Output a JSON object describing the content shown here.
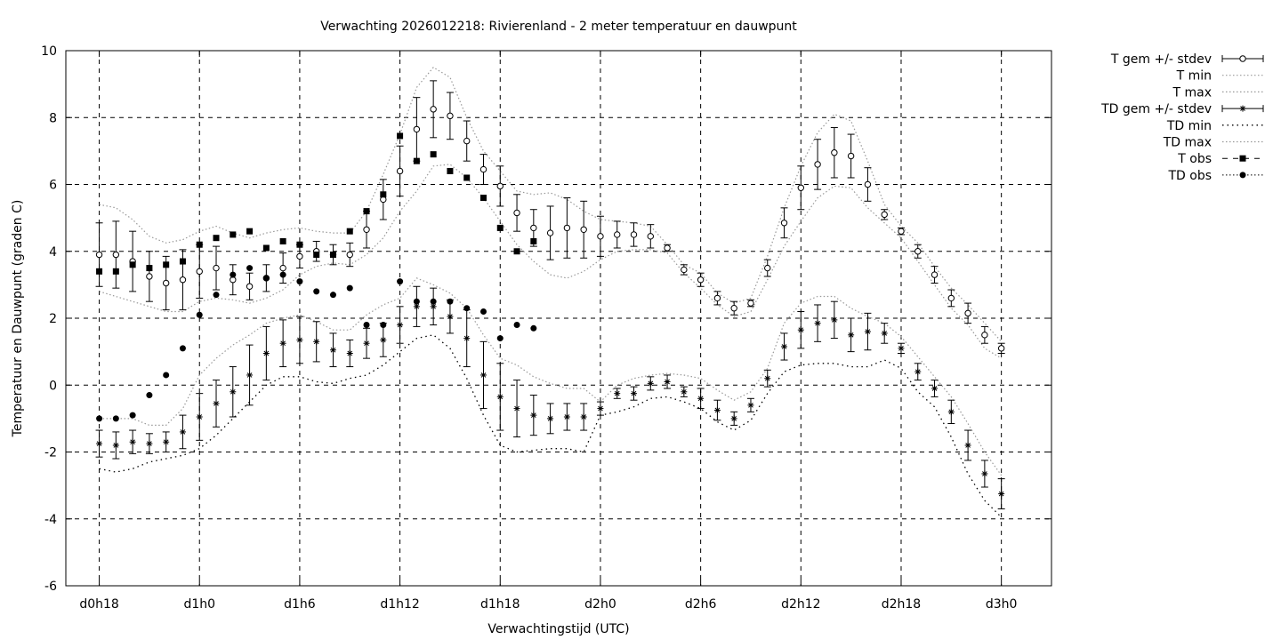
{
  "chart_data": {
    "type": "scatter",
    "title": "Verwachting 2026012218: Rivierenland - 2 meter temperatuur en dauwpunt",
    "xlabel": "Verwachtingstijd (UTC)",
    "ylabel": "Temperatuur en Dauwpunt (graden C)",
    "x_unit": "hours since d0h0",
    "xlim": [
      16,
      75
    ],
    "ylim": [
      -6,
      10
    ],
    "x_ticks": [
      {
        "x": 18,
        "label": "d0h18"
      },
      {
        "x": 24,
        "label": "d1h0"
      },
      {
        "x": 30,
        "label": "d1h6"
      },
      {
        "x": 36,
        "label": "d1h12"
      },
      {
        "x": 42,
        "label": "d1h18"
      },
      {
        "x": 48,
        "label": "d2h0"
      },
      {
        "x": 54,
        "label": "d2h6"
      },
      {
        "x": 60,
        "label": "d2h12"
      },
      {
        "x": 66,
        "label": "d2h18"
      },
      {
        "x": 72,
        "label": "d3h0"
      }
    ],
    "y_ticks": [
      10,
      8,
      6,
      4,
      2,
      0,
      -2,
      -4,
      -6
    ],
    "grid": true,
    "legend_position": "outside-right",
    "series": [
      {
        "name": "T gem +/- stdev",
        "x": [
          18,
          19,
          20,
          21,
          22,
          23,
          24,
          25,
          26,
          27,
          28,
          29,
          30,
          31,
          32,
          33,
          34,
          35,
          36,
          37,
          38,
          39,
          40,
          41,
          42,
          43,
          44,
          45,
          46,
          47,
          48,
          49,
          50,
          51,
          52,
          53,
          54,
          55,
          56,
          57,
          58,
          59,
          60,
          61,
          62,
          63,
          64,
          65,
          66,
          67,
          68,
          69,
          70,
          71,
          72
        ],
        "y": [
          3.9,
          3.9,
          3.7,
          3.25,
          3.05,
          3.15,
          3.4,
          3.5,
          3.15,
          2.95,
          3.2,
          3.5,
          3.85,
          4.0,
          3.9,
          3.9,
          4.65,
          5.55,
          6.4,
          7.65,
          8.25,
          8.05,
          7.3,
          6.45,
          5.95,
          5.15,
          4.7,
          4.55,
          4.7,
          4.65,
          4.45,
          4.5,
          4.5,
          4.45,
          4.1,
          3.45,
          3.15,
          2.6,
          2.3,
          2.45,
          3.5,
          4.85,
          5.9,
          6.6,
          6.95,
          6.85,
          6.0,
          5.1,
          4.6,
          4.0,
          3.3,
          2.6,
          2.15,
          1.5,
          1.1
        ],
        "stdev": [
          0.95,
          1.0,
          0.9,
          0.75,
          0.8,
          0.9,
          0.8,
          0.65,
          0.45,
          0.4,
          0.4,
          0.45,
          0.35,
          0.3,
          0.3,
          0.35,
          0.55,
          0.6,
          0.75,
          0.95,
          0.85,
          0.7,
          0.6,
          0.45,
          0.6,
          0.55,
          0.55,
          0.8,
          0.9,
          0.85,
          0.6,
          0.4,
          0.35,
          0.35,
          0.1,
          0.15,
          0.2,
          0.2,
          0.2,
          0.1,
          0.25,
          0.45,
          0.65,
          0.75,
          0.75,
          0.65,
          0.5,
          0.15,
          0.1,
          0.2,
          0.25,
          0.25,
          0.3,
          0.25,
          0.15
        ]
      },
      {
        "name": "T min",
        "x": [
          18,
          19,
          20,
          21,
          22,
          23,
          24,
          25,
          26,
          27,
          28,
          29,
          30,
          31,
          32,
          33,
          34,
          35,
          36,
          37,
          38,
          39,
          40,
          41,
          42,
          43,
          44,
          45,
          46,
          47,
          48,
          49,
          50,
          51,
          52,
          53,
          54,
          55,
          56,
          57,
          58,
          59,
          60,
          61,
          62,
          63,
          64,
          65,
          66,
          67,
          68,
          69,
          70,
          71,
          72
        ],
        "y": [
          2.8,
          2.65,
          2.5,
          2.35,
          2.2,
          2.2,
          2.5,
          2.6,
          2.55,
          2.45,
          2.6,
          2.85,
          3.3,
          3.55,
          3.65,
          3.6,
          3.9,
          4.4,
          5.2,
          5.8,
          6.55,
          6.6,
          6.2,
          5.6,
          4.9,
          4.2,
          3.7,
          3.3,
          3.2,
          3.4,
          3.75,
          4.0,
          4.05,
          4.05,
          3.95,
          3.35,
          2.9,
          2.4,
          2.05,
          2.2,
          3.15,
          4.15,
          4.9,
          5.6,
          5.95,
          5.9,
          5.3,
          4.85,
          4.4,
          3.7,
          3.0,
          2.3,
          1.8,
          1.1,
          0.8
        ]
      },
      {
        "name": "T max",
        "x": [
          18,
          19,
          20,
          21,
          22,
          23,
          24,
          25,
          26,
          27,
          28,
          29,
          30,
          31,
          32,
          33,
          34,
          35,
          36,
          37,
          38,
          39,
          40,
          41,
          42,
          43,
          44,
          45,
          46,
          47,
          48,
          49,
          50,
          51,
          52,
          53,
          54,
          55,
          56,
          57,
          58,
          59,
          60,
          61,
          62,
          63,
          64,
          65,
          66,
          67,
          68,
          69,
          70,
          71,
          72
        ],
        "y": [
          5.4,
          5.3,
          4.95,
          4.45,
          4.25,
          4.35,
          4.6,
          4.75,
          4.55,
          4.4,
          4.55,
          4.65,
          4.7,
          4.6,
          4.55,
          4.55,
          5.2,
          6.3,
          7.5,
          8.9,
          9.5,
          9.2,
          8.0,
          7.0,
          6.4,
          5.8,
          5.7,
          5.75,
          5.55,
          5.2,
          4.95,
          4.9,
          4.85,
          4.75,
          4.2,
          3.6,
          3.35,
          2.75,
          2.45,
          2.6,
          3.85,
          5.3,
          6.55,
          7.55,
          8.1,
          7.9,
          6.7,
          5.4,
          4.75,
          4.25,
          3.55,
          2.9,
          2.4,
          1.85,
          1.3
        ]
      },
      {
        "name": "TD gem +/- stdev",
        "x": [
          18,
          19,
          20,
          21,
          22,
          23,
          24,
          25,
          26,
          27,
          28,
          29,
          30,
          31,
          32,
          33,
          34,
          35,
          36,
          37,
          38,
          39,
          40,
          41,
          42,
          43,
          44,
          45,
          46,
          47,
          48,
          49,
          50,
          51,
          52,
          53,
          54,
          55,
          56,
          57,
          58,
          59,
          60,
          61,
          62,
          63,
          64,
          65,
          66,
          67,
          68,
          69,
          70,
          71,
          72
        ],
        "y": [
          -1.75,
          -1.8,
          -1.7,
          -1.75,
          -1.7,
          -1.4,
          -0.95,
          -0.55,
          -0.2,
          0.3,
          0.95,
          1.25,
          1.35,
          1.3,
          1.05,
          0.95,
          1.25,
          1.35,
          1.8,
          2.35,
          2.35,
          2.05,
          1.4,
          0.3,
          -0.35,
          -0.7,
          -0.9,
          -1.0,
          -0.95,
          -0.95,
          -0.7,
          -0.25,
          -0.25,
          0.05,
          0.1,
          -0.2,
          -0.4,
          -0.75,
          -1.0,
          -0.6,
          0.2,
          1.15,
          1.65,
          1.85,
          1.95,
          1.5,
          1.6,
          1.55,
          1.1,
          0.4,
          -0.1,
          -0.8,
          -1.8,
          -2.65,
          -3.25
        ],
        "stdev": [
          0.4,
          0.4,
          0.35,
          0.3,
          0.3,
          0.5,
          0.7,
          0.7,
          0.75,
          0.9,
          0.8,
          0.7,
          0.7,
          0.6,
          0.5,
          0.4,
          0.45,
          0.5,
          0.55,
          0.6,
          0.55,
          0.5,
          0.85,
          1.0,
          1.0,
          0.85,
          0.6,
          0.45,
          0.4,
          0.4,
          0.2,
          0.15,
          0.2,
          0.2,
          0.2,
          0.15,
          0.3,
          0.3,
          0.2,
          0.2,
          0.25,
          0.4,
          0.55,
          0.55,
          0.55,
          0.5,
          0.55,
          0.3,
          0.15,
          0.25,
          0.25,
          0.35,
          0.45,
          0.4,
          0.45
        ]
      },
      {
        "name": "TD min",
        "x": [
          18,
          19,
          20,
          21,
          22,
          23,
          24,
          25,
          26,
          27,
          28,
          29,
          30,
          31,
          32,
          33,
          34,
          35,
          36,
          37,
          38,
          39,
          40,
          41,
          42,
          43,
          44,
          45,
          46,
          47,
          48,
          49,
          50,
          51,
          52,
          53,
          54,
          55,
          56,
          57,
          58,
          59,
          60,
          61,
          62,
          63,
          64,
          65,
          66,
          67,
          68,
          69,
          70,
          71,
          72
        ],
        "y": [
          -2.5,
          -2.6,
          -2.5,
          -2.3,
          -2.2,
          -2.1,
          -1.9,
          -1.5,
          -1.0,
          -0.5,
          0.0,
          0.25,
          0.25,
          0.1,
          0.05,
          0.2,
          0.3,
          0.6,
          1.0,
          1.4,
          1.5,
          1.1,
          0.2,
          -0.9,
          -1.8,
          -2.0,
          -1.95,
          -1.9,
          -1.9,
          -2.0,
          -0.9,
          -0.8,
          -0.65,
          -0.4,
          -0.35,
          -0.5,
          -0.7,
          -1.1,
          -1.35,
          -1.05,
          -0.25,
          0.4,
          0.6,
          0.65,
          0.65,
          0.55,
          0.55,
          0.75,
          0.5,
          -0.2,
          -0.65,
          -1.55,
          -2.65,
          -3.45,
          -3.95
        ]
      },
      {
        "name": "TD max",
        "x": [
          18,
          19,
          20,
          21,
          22,
          23,
          24,
          25,
          26,
          27,
          28,
          29,
          30,
          31,
          32,
          33,
          34,
          35,
          36,
          37,
          38,
          39,
          40,
          41,
          42,
          43,
          44,
          45,
          46,
          47,
          48,
          49,
          50,
          51,
          52,
          53,
          54,
          55,
          56,
          57,
          58,
          59,
          60,
          61,
          62,
          63,
          64,
          65,
          66,
          67,
          68,
          69,
          70,
          71,
          72
        ],
        "y": [
          -1.0,
          -1.0,
          -1.0,
          -1.2,
          -1.2,
          -0.7,
          0.3,
          0.8,
          1.2,
          1.5,
          1.85,
          2.0,
          2.1,
          1.9,
          1.65,
          1.65,
          2.1,
          2.4,
          2.6,
          3.2,
          3.0,
          2.75,
          2.3,
          1.5,
          0.8,
          0.6,
          0.25,
          0.05,
          -0.1,
          -0.1,
          -0.5,
          0.0,
          0.2,
          0.3,
          0.35,
          0.3,
          0.2,
          -0.15,
          -0.45,
          -0.2,
          0.5,
          1.85,
          2.45,
          2.65,
          2.65,
          2.3,
          2.05,
          1.85,
          1.45,
          0.85,
          0.25,
          -0.35,
          -1.15,
          -2.0,
          -2.7
        ]
      },
      {
        "name": "T obs",
        "x": [
          18,
          19,
          20,
          21,
          22,
          23,
          24,
          25,
          26,
          27,
          28,
          29,
          30,
          31,
          32,
          33,
          34,
          35,
          36,
          37,
          38,
          39,
          40,
          41,
          42,
          43,
          44
        ],
        "y": [
          3.4,
          3.4,
          3.6,
          3.5,
          3.6,
          3.7,
          4.2,
          4.4,
          4.5,
          4.6,
          4.1,
          4.3,
          4.2,
          3.9,
          3.9,
          4.6,
          5.2,
          5.7,
          7.45,
          6.7,
          6.9,
          6.4,
          6.2,
          5.6,
          4.7,
          4.0,
          4.3
        ]
      },
      {
        "name": "TD obs",
        "x": [
          18,
          19,
          20,
          21,
          22,
          23,
          24,
          25,
          26,
          27,
          28,
          29,
          30,
          31,
          32,
          33,
          34,
          35,
          36,
          37,
          38,
          39,
          40,
          41,
          42,
          43,
          44
        ],
        "y": [
          -1.0,
          -1.0,
          -0.9,
          -0.3,
          0.3,
          1.1,
          2.1,
          2.7,
          3.3,
          3.5,
          3.2,
          3.3,
          3.1,
          2.8,
          2.7,
          2.9,
          1.8,
          1.8,
          3.1,
          2.5,
          2.5,
          2.5,
          2.3,
          2.2,
          1.4,
          1.8,
          1.7
        ]
      }
    ]
  }
}
